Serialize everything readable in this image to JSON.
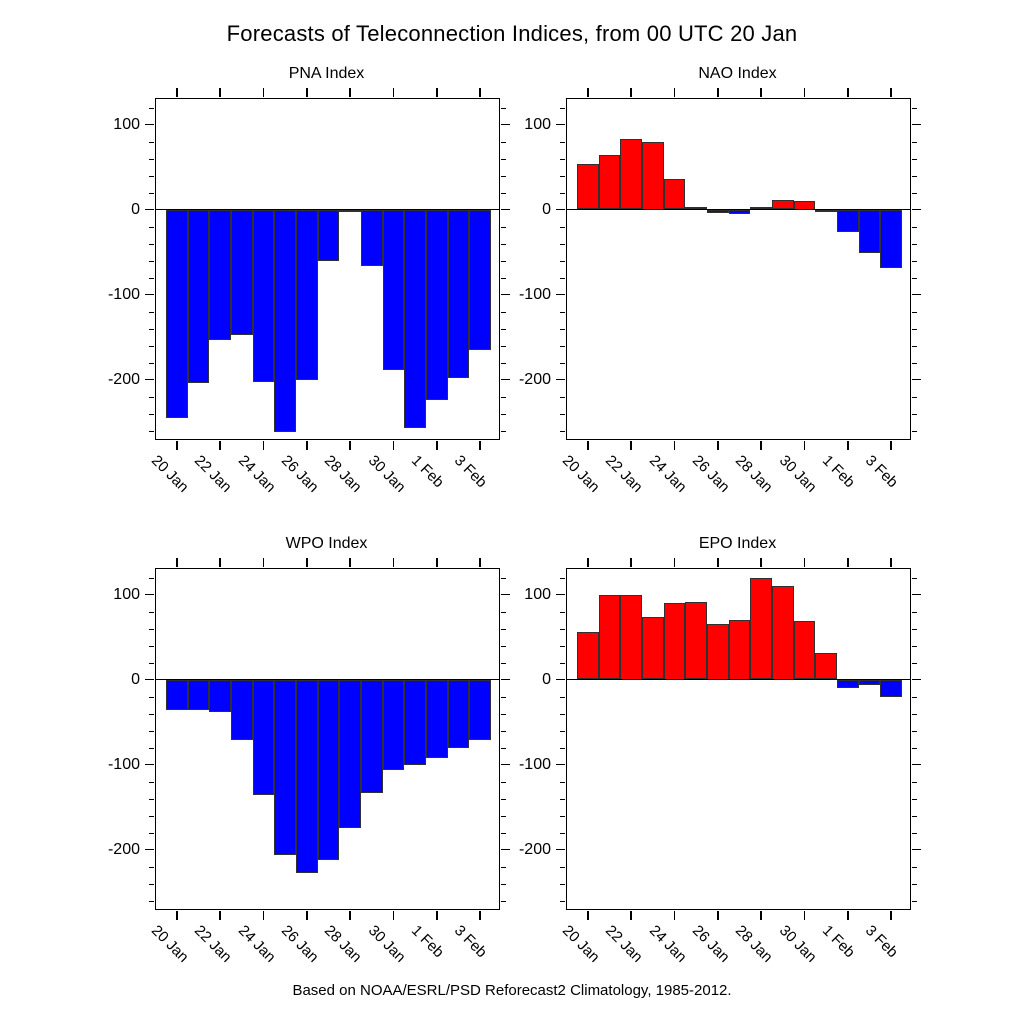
{
  "figure": {
    "title": "Forecasts of Teleconnection Indices, from 00 UTC 20 Jan",
    "caption": "Based on NOAA/ESRL/PSD Reforecast2 Climatology, 1985-2012."
  },
  "colors": {
    "positive": "#ff0000",
    "negative": "#0000ff",
    "bar_outline": "#303030",
    "axis": "#000000",
    "background": "#ffffff"
  },
  "chart_data": [
    {
      "type": "bar",
      "title": "PNA Index",
      "categories": [
        "20 Jan",
        "21 Jan",
        "22 Jan",
        "23 Jan",
        "24 Jan",
        "25 Jan",
        "26 Jan",
        "27 Jan",
        "28 Jan",
        "29 Jan",
        "30 Jan",
        "31 Jan",
        "1 Feb",
        "2 Feb",
        "3 Feb"
      ],
      "values": [
        -245,
        -204,
        -153,
        -148,
        -203,
        -262,
        -200,
        -61,
        -2,
        -66,
        -189,
        -257,
        -224,
        -198,
        -165
      ],
      "ylim": [
        -270,
        130
      ],
      "yticks": [
        100,
        0,
        -100,
        -200
      ],
      "y_minor_step": 20,
      "xtick_labels": [
        "20 Jan",
        "22 Jan",
        "24 Jan",
        "26 Jan",
        "28 Jan",
        "30 Jan",
        "1 Feb",
        "3 Feb"
      ],
      "xtick_every": 2,
      "grid": false,
      "legend": "none",
      "color_rule": "red if value >= 0 else blue"
    },
    {
      "type": "bar",
      "title": "NAO Index",
      "categories": [
        "20 Jan",
        "21 Jan",
        "22 Jan",
        "23 Jan",
        "24 Jan",
        "25 Jan",
        "26 Jan",
        "27 Jan",
        "28 Jan",
        "29 Jan",
        "30 Jan",
        "31 Jan",
        "1 Feb",
        "2 Feb",
        "3 Feb"
      ],
      "values": [
        53,
        64,
        83,
        80,
        36,
        3,
        -4,
        -5,
        3,
        11,
        10,
        -3,
        -26,
        -51,
        -69
      ],
      "ylim": [
        -270,
        130
      ],
      "yticks": [
        100,
        0,
        -100,
        -200
      ],
      "y_minor_step": 20,
      "xtick_labels": [
        "20 Jan",
        "22 Jan",
        "24 Jan",
        "26 Jan",
        "28 Jan",
        "30 Jan",
        "1 Feb",
        "3 Feb"
      ],
      "xtick_every": 2,
      "grid": false,
      "legend": "none",
      "color_rule": "red if value >= 0 else blue"
    },
    {
      "type": "bar",
      "title": "WPO Index",
      "categories": [
        "20 Jan",
        "21 Jan",
        "22 Jan",
        "23 Jan",
        "24 Jan",
        "25 Jan",
        "26 Jan",
        "27 Jan",
        "28 Jan",
        "29 Jan",
        "30 Jan",
        "31 Jan",
        "1 Feb",
        "2 Feb",
        "3 Feb"
      ],
      "values": [
        -36,
        -36,
        -38,
        -71,
        -136,
        -206,
        -228,
        -212,
        -175,
        -134,
        -106,
        -101,
        -92,
        -80,
        -71
      ],
      "ylim": [
        -270,
        130
      ],
      "yticks": [
        100,
        0,
        -100,
        -200
      ],
      "y_minor_step": 20,
      "xtick_labels": [
        "20 Jan",
        "22 Jan",
        "24 Jan",
        "26 Jan",
        "28 Jan",
        "30 Jan",
        "1 Feb",
        "3 Feb"
      ],
      "xtick_every": 2,
      "grid": false,
      "legend": "none",
      "color_rule": "red if value >= 0 else blue"
    },
    {
      "type": "bar",
      "title": "EPO Index",
      "categories": [
        "20 Jan",
        "21 Jan",
        "22 Jan",
        "23 Jan",
        "24 Jan",
        "25 Jan",
        "26 Jan",
        "27 Jan",
        "28 Jan",
        "29 Jan",
        "30 Jan",
        "31 Jan",
        "1 Feb",
        "2 Feb",
        "3 Feb"
      ],
      "values": [
        56,
        99,
        100,
        74,
        90,
        91,
        65,
        70,
        119,
        110,
        69,
        31,
        -10,
        -6,
        -21
      ],
      "ylim": [
        -270,
        130
      ],
      "yticks": [
        100,
        0,
        -100,
        -200
      ],
      "y_minor_step": 20,
      "xtick_labels": [
        "20 Jan",
        "22 Jan",
        "24 Jan",
        "26 Jan",
        "28 Jan",
        "30 Jan",
        "1 Feb",
        "3 Feb"
      ],
      "xtick_every": 2,
      "grid": false,
      "legend": "none",
      "color_rule": "red if value >= 0 else blue"
    }
  ]
}
